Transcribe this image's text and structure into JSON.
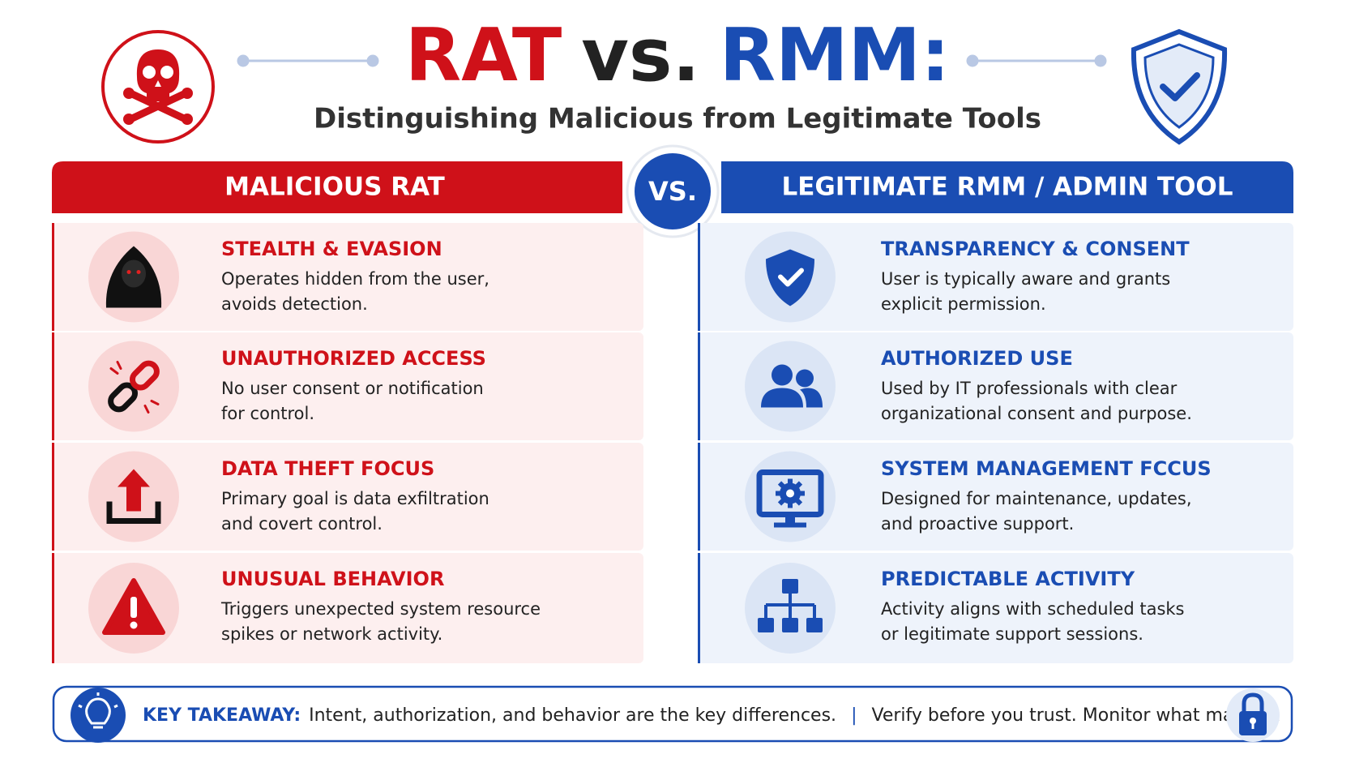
{
  "header": {
    "title_rat": "RAT",
    "title_vs": "vs.",
    "title_rmm": "RMM:",
    "subtitle": "Distinguishing Malicious from Legitimate Tools"
  },
  "vs_badge": "VS.",
  "left": {
    "heading": "MALICIOUS RAT",
    "items": [
      {
        "title": "STEALTH & EVASION",
        "lines": [
          "Operates hidden from the user,",
          "avoids detection."
        ]
      },
      {
        "title": "UNAUTHORIZED ACCESS",
        "lines": [
          "No user consent or notification",
          "for control."
        ]
      },
      {
        "title": "DATA THEFT FOCUS",
        "lines": [
          "Primary goal is data exfiltration",
          "and covert control."
        ]
      },
      {
        "title": "UNUSUAL BEHAVIOR",
        "lines": [
          "Triggers unexpected system resource",
          "spikes or network activity."
        ]
      }
    ]
  },
  "right": {
    "heading": "LEGITIMATE RMM / ADMIN TOOL",
    "items": [
      {
        "title": "TRANSPARENCY & CONSENT",
        "lines": [
          "User is typically aware and grants",
          "explicit permission."
        ]
      },
      {
        "title": "AUTHORIZED USE",
        "lines": [
          "Used by IT professionals with clear",
          "organizational consent and purpose."
        ]
      },
      {
        "title": "SYSTEM MANAGEMENT FCCUS",
        "lines": [
          "Designed for maintenance, updates,",
          "and proactive support."
        ]
      },
      {
        "title": "PREDICTABLE ACTIVITY",
        "lines": [
          "Activity aligns with scheduled tasks",
          "or legitimate support sessions."
        ]
      }
    ]
  },
  "footer": {
    "label": "KEY TAKEAWAY:",
    "text": "Intent, authorization, and behavior are the key differences.",
    "separator": "|",
    "text2": "Verify before you trust. Monitor what matters."
  }
}
